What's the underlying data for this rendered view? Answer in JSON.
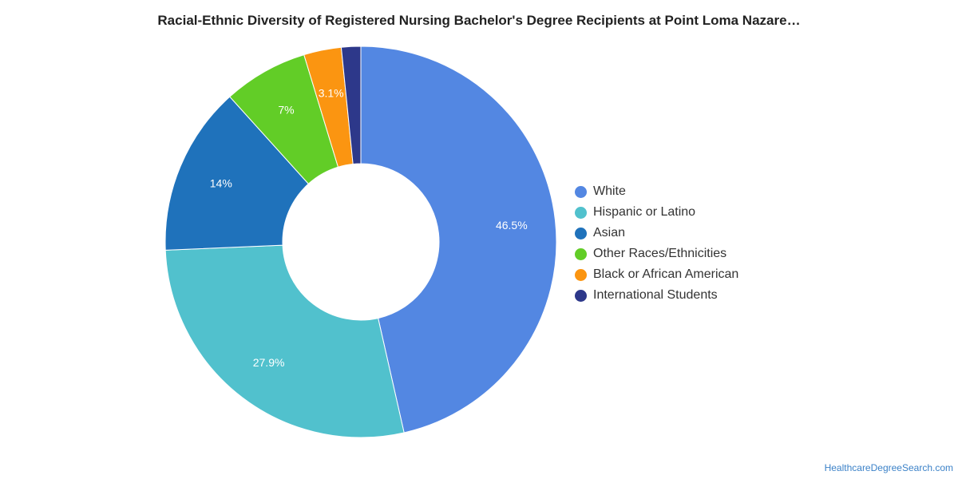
{
  "chart_data": {
    "type": "pie",
    "donut": true,
    "title": "Racial-Ethnic Diversity of Registered Nursing Bachelor's Degree Recipients at Point Loma Nazare…",
    "categories": [
      "White",
      "Hispanic or Latino",
      "Asian",
      "Other Races/Ethnicities",
      "Black or African American",
      "International Students"
    ],
    "values": [
      46.5,
      27.9,
      14,
      7,
      3.1,
      1.6
    ],
    "value_labels": [
      "46.5%",
      "27.9%",
      "14%",
      "7%",
      "3.1%",
      ""
    ],
    "colors": [
      "#5387e2",
      "#51c1cd",
      "#1f72bb",
      "#62cd27",
      "#fb9511",
      "#2d388a"
    ],
    "legend_position": "right"
  },
  "credit": "HealthcareDegreeSearch.com"
}
